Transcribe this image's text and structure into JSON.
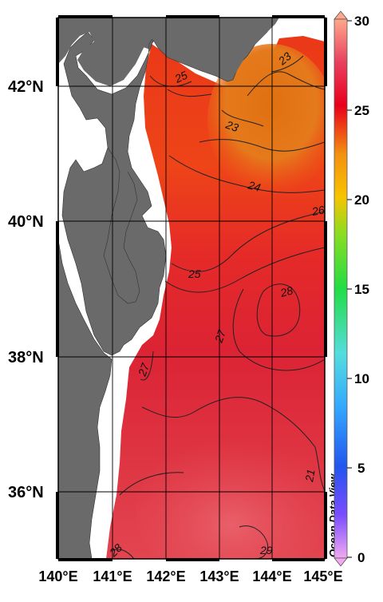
{
  "map": {
    "lat_labels": [
      "42°N",
      "40°N",
      "38°N",
      "36°N"
    ],
    "lon_labels": [
      "140°E",
      "141°E",
      "142°E",
      "143°E",
      "144°E",
      "145°E"
    ],
    "contour_labels": [
      "25",
      "23",
      "23",
      "24",
      "26",
      "25",
      "28",
      "27",
      "27",
      "21",
      "28",
      "29"
    ],
    "watermark": "Ocean Data View"
  },
  "colorbar": {
    "ticks": [
      "30",
      "25",
      "20",
      "15",
      "10",
      "5",
      "0"
    ],
    "colors": [
      "#ffa07a",
      "#e8001a",
      "#f39c12",
      "#33cc33",
      "#66cccc",
      "#3366ff",
      "#ee99ee"
    ]
  },
  "colors": {
    "land": "#6a6a6a",
    "water_mask": "#ffffff",
    "warm_red": "#df2838",
    "orange": "#e57a1c"
  }
}
